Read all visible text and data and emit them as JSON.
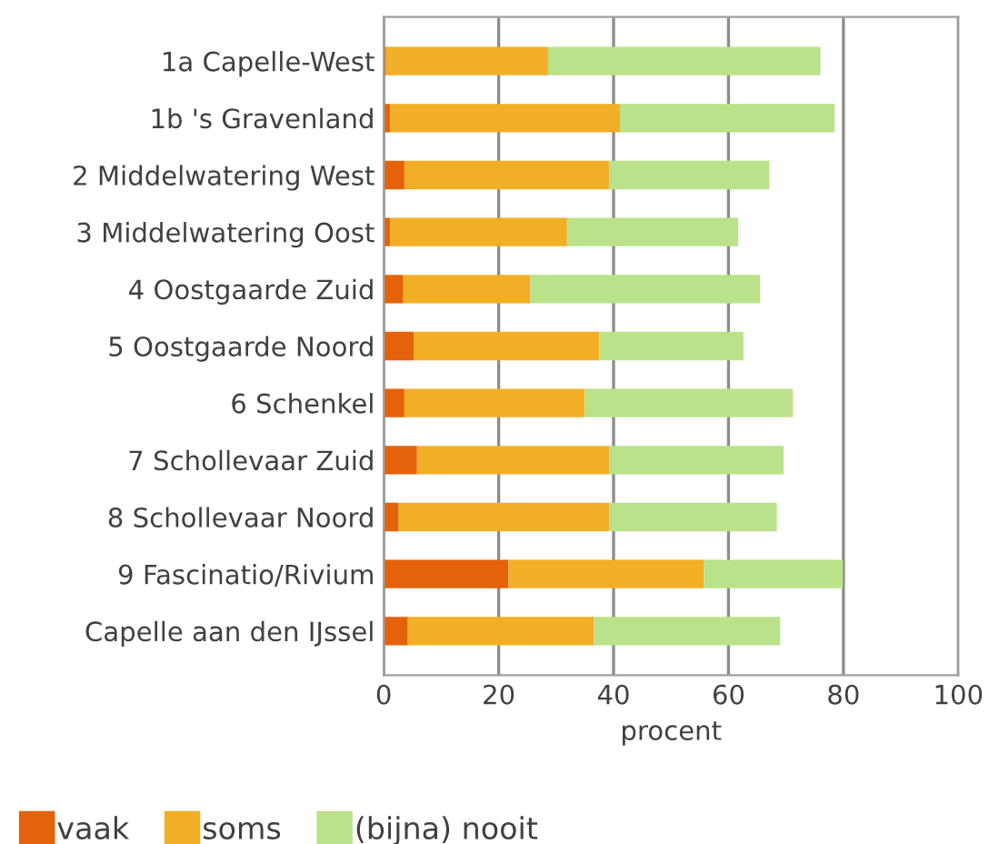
{
  "chart_data": {
    "type": "bar",
    "orientation": "horizontal",
    "stacked": true,
    "xlabel": "procent",
    "categories": [
      "1a Capelle-West",
      "1b 's Gravenland",
      "2 Middelwatering West",
      "3 Middelwatering Oost",
      "4 Oostgaarde Zuid",
      "5 Oostgaarde Noord",
      "6 Schenkel",
      "7 Schollevaar Zuid",
      "8 Schollevaar Noord",
      "9 Fascinatio/Rivium",
      "Capelle aan den IJssel"
    ],
    "series": [
      {
        "name": "vaak",
        "color": "#e46209",
        "values": [
          0.4,
          1.1,
          3.6,
          1.1,
          3.3,
          5.2,
          3.6,
          5.8,
          2.6,
          21.7,
          4.2
        ]
      },
      {
        "name": "soms",
        "color": "#f2ae26",
        "values": [
          28.2,
          40.0,
          35.6,
          30.8,
          22.2,
          32.3,
          31.4,
          33.4,
          36.6,
          34.0,
          32.4
        ]
      },
      {
        "name": "(bijna) nooit",
        "color": "#b9e28a",
        "values": [
          47.4,
          37.4,
          27.9,
          29.8,
          40.0,
          25.1,
          36.2,
          30.4,
          29.2,
          24.2,
          32.4
        ]
      }
    ],
    "xlim": [
      0,
      100
    ],
    "xticks": [
      0,
      20,
      40,
      60,
      80,
      100
    ],
    "grid": "x",
    "legend": "bottom"
  }
}
